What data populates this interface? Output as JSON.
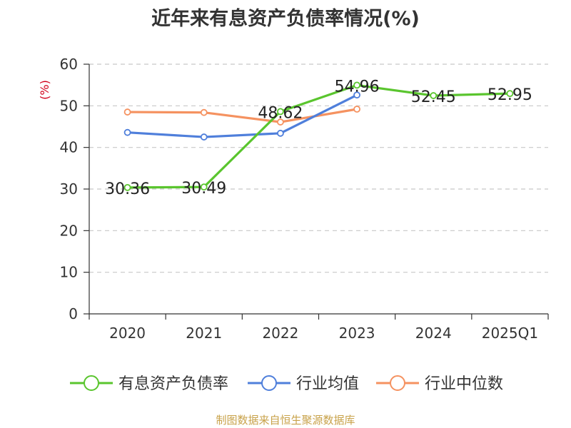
{
  "chart_data": {
    "type": "line",
    "title": "近年来有息资产负债率情况(%)",
    "ylabel": "(%)",
    "xlabel": "",
    "ylim": [
      0,
      60
    ],
    "yticks": [
      0,
      10,
      20,
      30,
      40,
      50,
      60
    ],
    "categories": [
      "2020",
      "2021",
      "2022",
      "2023",
      "2024",
      "2025Q1"
    ],
    "grid": true,
    "legend_position": "bottom",
    "series": [
      {
        "name": "有息资产负债率",
        "color": "#5ac52e",
        "values": [
          30.36,
          30.49,
          48.62,
          54.96,
          52.45,
          52.95
        ],
        "show_labels": true
      },
      {
        "name": "行业均值",
        "color": "#4f7fdb",
        "values": [
          43.6,
          42.5,
          43.4,
          52.6,
          null,
          null
        ],
        "show_labels": false
      },
      {
        "name": "行业中位数",
        "color": "#f59260",
        "values": [
          48.5,
          48.4,
          46.1,
          49.2,
          null,
          null
        ],
        "show_labels": false
      }
    ]
  },
  "source": "制图数据来自恒生聚源数据库"
}
